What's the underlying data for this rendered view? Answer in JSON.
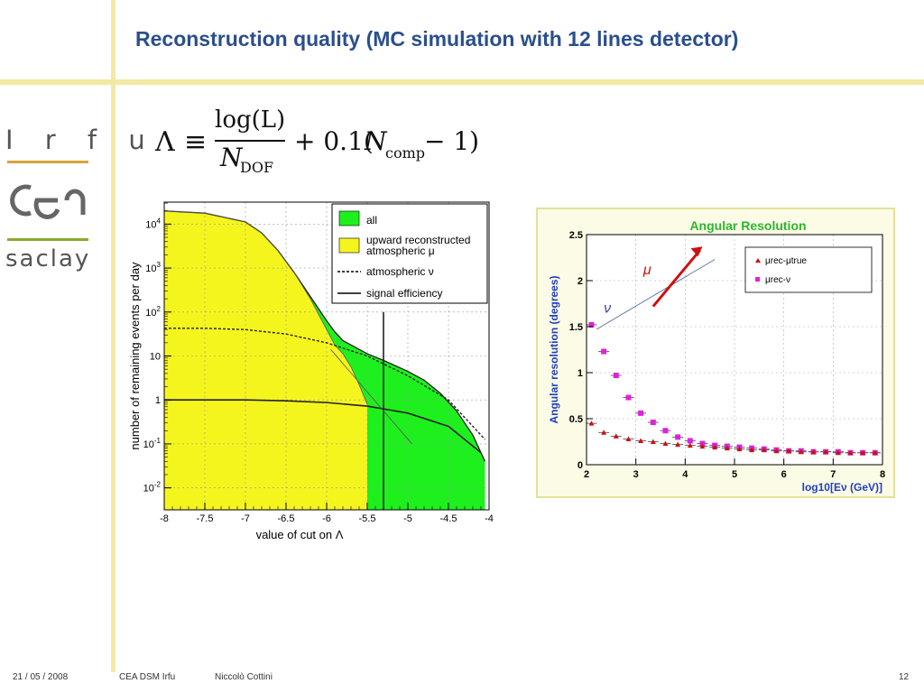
{
  "slide": {
    "title": "Reconstruction quality (MC simulation with 12 lines detector)",
    "page_number": "12",
    "footer": {
      "date": "21 / 05 / 2008",
      "org": "CEA DSM Irfu",
      "author": "Niccolò Cottini"
    },
    "logos": {
      "irfu": "I r f u",
      "cea": "cea",
      "saclay": "saclay"
    },
    "formula": {
      "lhs": "Λ",
      "equiv": "≡",
      "numerator": "log(L)",
      "denominator_base": "N",
      "denominator_sub": "DOF",
      "tail_a": "+ 0.1(",
      "tail_n": "N",
      "tail_sub": "comp",
      "tail_b": " − 1)"
    },
    "colors": {
      "title": "#2b4f8c",
      "accent_bar": "#f3e9a2",
      "atm_fill": "#f5f51e",
      "all_fill": "#1ef01e",
      "ang_title": "#2eb52e",
      "axis_blue": "#1f3fbf",
      "mu_red": "#cc1111",
      "nu_magenta": "#dd22dd"
    }
  },
  "chart_data": [
    {
      "type": "area",
      "xlabel": "value of cut on Λ",
      "ylabel": "number of remaining events per day",
      "xlim": [
        -8,
        -4
      ],
      "ylim_log10": [
        -2.5,
        4.5
      ],
      "y_scale": "log",
      "x_ticks": [
        "-8",
        "-7.5",
        "-7",
        "-6.5",
        "-6",
        "-5.5",
        "-5",
        "-4.5",
        "-4"
      ],
      "y_ticks": [
        {
          "base": "10",
          "exp": "4"
        },
        {
          "base": "10",
          "exp": "3"
        },
        {
          "base": "10",
          "exp": "2"
        },
        {
          "base": "10",
          "exp": "",
          "plain": "10"
        },
        {
          "base": "",
          "exp": "",
          "plain": "1"
        },
        {
          "base": "10",
          "exp": "-1"
        },
        {
          "base": "10",
          "exp": "-2"
        }
      ],
      "grid": true,
      "legend_position": "top-right",
      "legend": [
        {
          "label": "all",
          "kind": "box",
          "color": "#1ef01e"
        },
        {
          "label": "upward reconstructed",
          "label2": "atmospheric μ",
          "kind": "box",
          "color": "#f5f51e"
        },
        {
          "label": "atmospheric ν",
          "kind": "dotted"
        },
        {
          "label": "signal efficiency",
          "kind": "solid"
        }
      ],
      "series": [
        {
          "name": "all",
          "x": [
            -8,
            -7.5,
            -7,
            -6.8,
            -6.6,
            -6.4,
            -6.2,
            -6.0,
            -5.9,
            -5.8,
            -5.7,
            -5.6,
            -5.5,
            -5.3,
            -5.0,
            -4.8,
            -4.6,
            -4.4,
            -4.2,
            -4.05
          ],
          "y_log10": [
            4.3,
            4.25,
            4.05,
            3.8,
            3.4,
            2.9,
            2.35,
            1.8,
            1.55,
            1.35,
            1.25,
            1.15,
            1.05,
            0.9,
            0.65,
            0.45,
            0.15,
            -0.25,
            -0.8,
            -1.4
          ]
        },
        {
          "name": "upward reconstructed atmospheric μ",
          "x": [
            -8,
            -7.5,
            -7,
            -6.8,
            -6.6,
            -6.4,
            -6.2,
            -6.0,
            -5.9,
            -5.8,
            -5.7,
            -5.6,
            -5.5
          ],
          "y_log10": [
            4.3,
            4.25,
            4.05,
            3.8,
            3.4,
            2.9,
            2.3,
            1.6,
            1.25,
            1.05,
            0.75,
            0.35,
            -0.1
          ]
        },
        {
          "name": "atmospheric ν",
          "x": [
            -8,
            -7.5,
            -7,
            -6.5,
            -6.0,
            -5.5,
            -5.0,
            -4.5,
            -4.05
          ],
          "y_log10": [
            1.63,
            1.63,
            1.6,
            1.5,
            1.3,
            1.0,
            0.55,
            0.0,
            -0.9
          ]
        },
        {
          "name": "signal efficiency",
          "x": [
            -8,
            -7.5,
            -7,
            -6.5,
            -6.0,
            -5.5,
            -5.0,
            -4.5,
            -4.1
          ],
          "y_log10": [
            0.0,
            0.0,
            0.0,
            -0.02,
            -0.06,
            -0.14,
            -0.3,
            -0.6,
            -1.2
          ]
        }
      ],
      "cut_value": -5.3
    },
    {
      "type": "scatter",
      "title": "Angular Resolution",
      "xlabel": "log10[Eν (GeV)]",
      "ylabel": "Angular resolution (degrees)",
      "xlim": [
        2,
        8
      ],
      "ylim": [
        0,
        2.5
      ],
      "x_ticks": [
        "2",
        "3",
        "4",
        "5",
        "6",
        "7",
        "8"
      ],
      "y_ticks": [
        "0",
        "0.5",
        "1",
        "1.5",
        "2",
        "2.5"
      ],
      "grid": true,
      "legend_position": "top-right",
      "annotations": [
        "μ",
        "ν"
      ],
      "series": [
        {
          "name": "μrec-μtrue",
          "x": [
            2.1,
            2.35,
            2.6,
            2.85,
            3.1,
            3.35,
            3.6,
            3.85,
            4.1,
            4.35,
            4.6,
            4.85,
            5.1,
            5.35,
            5.6,
            5.85,
            6.1,
            6.35,
            6.6,
            6.85,
            7.1,
            7.35,
            7.6,
            7.85
          ],
          "y": [
            0.45,
            0.35,
            0.31,
            0.28,
            0.26,
            0.25,
            0.23,
            0.22,
            0.21,
            0.2,
            0.19,
            0.18,
            0.17,
            0.16,
            0.16,
            0.15,
            0.15,
            0.14,
            0.14,
            0.14,
            0.13,
            0.13,
            0.13,
            0.13
          ]
        },
        {
          "name": "μrec-ν",
          "x": [
            2.1,
            2.35,
            2.6,
            2.85,
            3.1,
            3.35,
            3.6,
            3.85,
            4.1,
            4.35,
            4.6,
            4.85,
            5.1,
            5.35,
            5.6,
            5.85,
            6.1,
            6.35,
            6.6,
            6.85,
            7.1,
            7.35,
            7.6,
            7.85
          ],
          "y": [
            1.52,
            1.23,
            0.97,
            0.73,
            0.56,
            0.46,
            0.37,
            0.3,
            0.26,
            0.23,
            0.21,
            0.2,
            0.19,
            0.18,
            0.17,
            0.16,
            0.15,
            0.15,
            0.14,
            0.14,
            0.14,
            0.13,
            0.13,
            0.13
          ]
        }
      ]
    }
  ]
}
